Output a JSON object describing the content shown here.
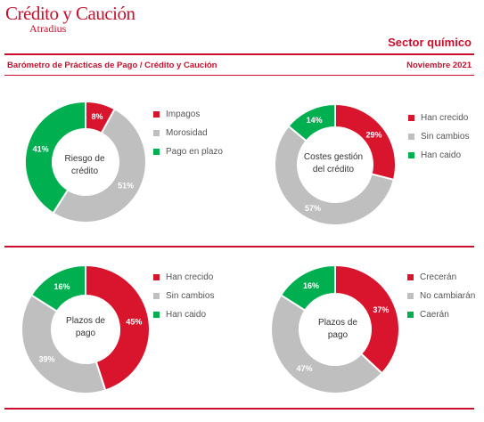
{
  "header": {
    "logo_main": "Crédito y Caución",
    "logo_sub": "Atradius",
    "sector": "Sector químico",
    "subtitle": "Barómetro de Prácticas de Pago / Crédito y Caución",
    "date": "Noviembre 2021"
  },
  "colors": {
    "red": "#d9142d",
    "grey": "#bfbfbf",
    "green": "#00b050",
    "brand": "#c8102e"
  },
  "chart_data": [
    {
      "type": "pie",
      "title": "Riesgo de crédito",
      "title_lines": [
        "Riesgo de",
        "crédito"
      ],
      "categories": [
        "Impagos",
        "Morosidad",
        "Pago en plazo"
      ],
      "values": [
        8,
        51,
        41
      ],
      "labels": [
        "8%",
        "51%",
        "41%"
      ],
      "colors": [
        "#d9142d",
        "#bfbfbf",
        "#00b050"
      ],
      "legend": "right"
    },
    {
      "type": "pie",
      "title": "Costes gestión del crédito",
      "title_lines": [
        "Costes gestión",
        "del crédito"
      ],
      "categories": [
        "Han crecido",
        "Sin cambios",
        "Han caido"
      ],
      "values": [
        29,
        57,
        14
      ],
      "labels": [
        "29%",
        "57%",
        "14%"
      ],
      "colors": [
        "#d9142d",
        "#bfbfbf",
        "#00b050"
      ],
      "legend": "right"
    },
    {
      "type": "pie",
      "title": "Plazos de pago",
      "title_lines": [
        "Plazos de",
        "pago"
      ],
      "categories": [
        "Han crecido",
        "Sin cambios",
        "Han caido"
      ],
      "values": [
        45,
        39,
        16
      ],
      "labels": [
        "45%",
        "39%",
        "16%"
      ],
      "colors": [
        "#d9142d",
        "#bfbfbf",
        "#00b050"
      ],
      "legend": "right"
    },
    {
      "type": "pie",
      "title": "Plazos de pago",
      "title_lines": [
        "Plazos de",
        "pago"
      ],
      "categories": [
        "Crecerán",
        "No cambiarán",
        "Caerán"
      ],
      "values": [
        37,
        47,
        16
      ],
      "labels": [
        "37%",
        "47%",
        "16%"
      ],
      "colors": [
        "#d9142d",
        "#bfbfbf",
        "#00b050"
      ],
      "legend": "right"
    }
  ]
}
